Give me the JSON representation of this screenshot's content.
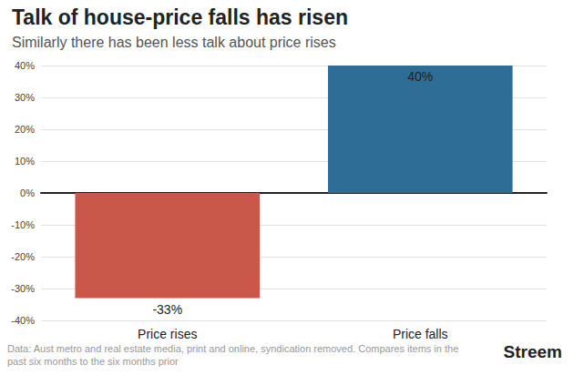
{
  "chart_data": {
    "type": "bar",
    "title": "Talk of house-price falls has risen",
    "subtitle": "Similarly there has been less talk about price rises",
    "categories": [
      "Price rises",
      "Price falls"
    ],
    "values": [
      -33,
      40
    ],
    "value_labels": [
      "-33%",
      "40%"
    ],
    "colors": [
      "#c9574a",
      "#2e6e96"
    ],
    "data_labels": true,
    "ylim": [
      -40,
      40
    ],
    "yticks": [
      {
        "value": -40,
        "label": "-40%"
      },
      {
        "value": -30,
        "label": "-30%"
      },
      {
        "value": -20,
        "label": "-20%"
      },
      {
        "value": -10,
        "label": "-10%"
      },
      {
        "value": 0,
        "label": "0%"
      },
      {
        "value": 10,
        "label": "10%"
      },
      {
        "value": 20,
        "label": "20%"
      },
      {
        "value": 30,
        "label": "30%"
      },
      {
        "value": 40,
        "label": "40%"
      }
    ],
    "grid": true,
    "note": "Data: Aust metro and real estate media, print and online, syndication removed. Compares items in the past six months to the six months prior",
    "logo": "Streem"
  }
}
